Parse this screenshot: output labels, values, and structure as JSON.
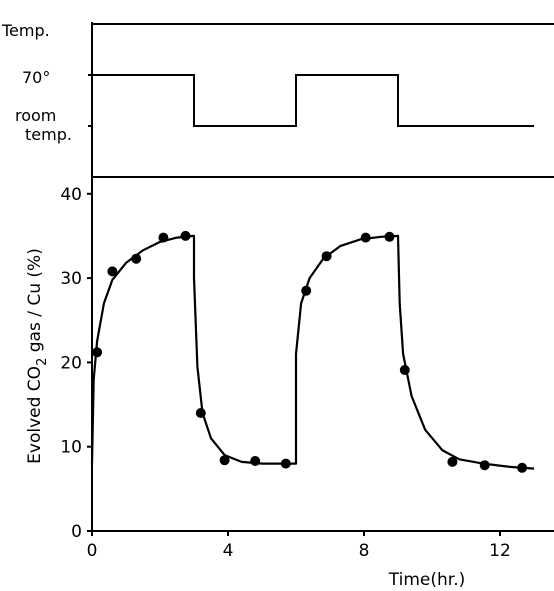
{
  "chart_data": [
    {
      "type": "line",
      "panel": "temperature-program",
      "ylabel": "Temp.",
      "levels": [
        {
          "name": "high",
          "label": "70°"
        },
        {
          "name": "low",
          "label_line1": "room",
          "label_line2": "temp."
        }
      ],
      "steps": [
        {
          "from": 0,
          "to": 3,
          "level": "high"
        },
        {
          "from": 3,
          "to": 6,
          "level": "low"
        },
        {
          "from": 6,
          "to": 9,
          "level": "high"
        },
        {
          "from": 9,
          "to": 13,
          "level": "low"
        }
      ]
    },
    {
      "type": "scatter",
      "panel": "co2-evolution",
      "xlabel": "Time(hr.)",
      "ylabel_parts": {
        "pre": "Evolved CO",
        "sub": "2",
        "post": " gas / Cu (%)"
      },
      "xlim": [
        0,
        14
      ],
      "ylim": [
        0,
        42
      ],
      "xticks": [
        0,
        4,
        8,
        12
      ],
      "yticks": [
        0,
        10,
        20,
        30,
        40
      ],
      "grid": false,
      "series": [
        {
          "points": [
            {
              "x": 0.15,
              "y": 21.2
            },
            {
              "x": 0.6,
              "y": 30.8
            },
            {
              "x": 1.3,
              "y": 32.3
            },
            {
              "x": 2.1,
              "y": 34.8
            },
            {
              "x": 2.75,
              "y": 35.0
            },
            {
              "x": 3.2,
              "y": 14.0
            },
            {
              "x": 3.9,
              "y": 8.4
            },
            {
              "x": 4.8,
              "y": 8.3
            },
            {
              "x": 5.7,
              "y": 8.0
            },
            {
              "x": 6.3,
              "y": 28.5
            },
            {
              "x": 6.9,
              "y": 32.6
            },
            {
              "x": 8.05,
              "y": 34.8
            },
            {
              "x": 8.75,
              "y": 34.9
            },
            {
              "x": 9.2,
              "y": 19.1
            },
            {
              "x": 10.6,
              "y": 8.2
            },
            {
              "x": 11.55,
              "y": 7.8
            },
            {
              "x": 12.65,
              "y": 7.5
            }
          ],
          "fit_curve": [
            [
              0.0,
              8.0
            ],
            [
              0.05,
              18.0
            ],
            [
              0.15,
              22.5
            ],
            [
              0.35,
              27.0
            ],
            [
              0.6,
              29.8
            ],
            [
              1.0,
              31.8
            ],
            [
              1.5,
              33.3
            ],
            [
              2.0,
              34.3
            ],
            [
              2.5,
              34.8
            ],
            [
              3.0,
              35.0
            ],
            [
              3.0,
              30.0
            ],
            [
              3.1,
              19.5
            ],
            [
              3.25,
              14.0
            ],
            [
              3.5,
              11.0
            ],
            [
              3.9,
              9.0
            ],
            [
              4.4,
              8.2
            ],
            [
              5.0,
              8.0
            ],
            [
              6.0,
              8.0
            ],
            [
              6.0,
              21.0
            ],
            [
              6.15,
              27.0
            ],
            [
              6.4,
              30.0
            ],
            [
              6.8,
              32.3
            ],
            [
              7.3,
              33.8
            ],
            [
              7.9,
              34.6
            ],
            [
              8.5,
              34.9
            ],
            [
              9.0,
              35.0
            ],
            [
              9.05,
              27.0
            ],
            [
              9.15,
              21.0
            ],
            [
              9.4,
              16.0
            ],
            [
              9.8,
              12.0
            ],
            [
              10.3,
              9.6
            ],
            [
              10.8,
              8.5
            ],
            [
              11.5,
              8.0
            ],
            [
              12.3,
              7.6
            ],
            [
              13.0,
              7.4
            ]
          ]
        }
      ]
    }
  ]
}
